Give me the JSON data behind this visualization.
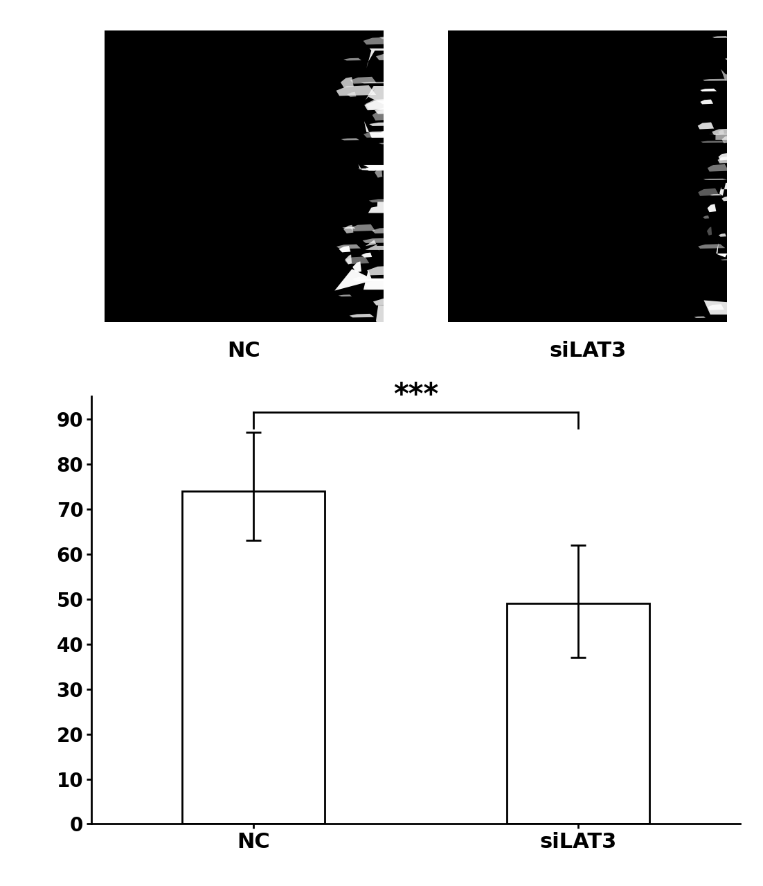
{
  "categories": [
    "NC",
    "siLAT3"
  ],
  "bar_values": [
    74.0,
    49.0
  ],
  "bar_errors_upper": [
    13.0,
    13.0
  ],
  "bar_errors_lower": [
    11.0,
    12.0
  ],
  "bar_color": "#ffffff",
  "bar_edgecolor": "#000000",
  "bar_linewidth": 2.0,
  "ylim": [
    0,
    95
  ],
  "yticks": [
    0,
    10,
    20,
    30,
    40,
    50,
    60,
    70,
    80,
    90
  ],
  "significance": "***",
  "sig_fontsize": 30,
  "tick_fontsize": 20,
  "label_fontsize": 22,
  "background_color": "#ffffff",
  "nc_image_label": "NC",
  "silat3_image_label": "siLAT3"
}
